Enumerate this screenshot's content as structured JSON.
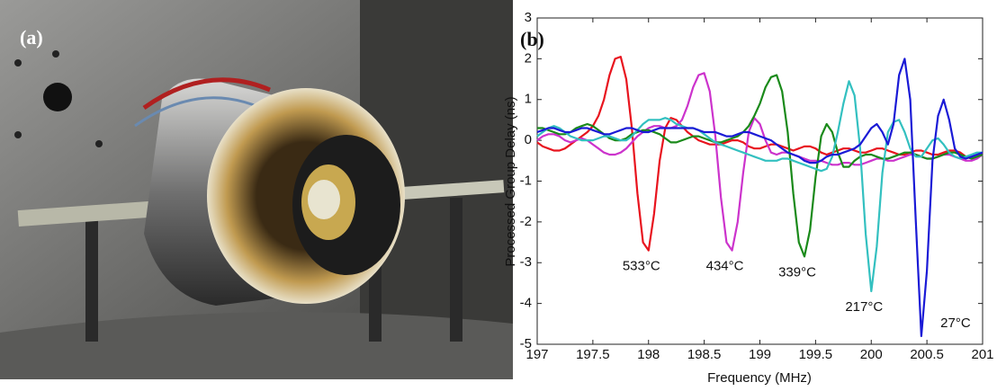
{
  "panel_a": {
    "label": "(a)"
  },
  "chart_data": {
    "type": "line",
    "panel_label": "(b)",
    "xlabel": "Frequency (MHz)",
    "ylabel": "Processed Group Delay (ns)",
    "x": [
      197,
      197.05,
      197.1,
      197.15,
      197.2,
      197.25,
      197.3,
      197.35,
      197.4,
      197.45,
      197.5,
      197.55,
      197.6,
      197.65,
      197.7,
      197.75,
      197.8,
      197.85,
      197.9,
      197.95,
      198,
      198.05,
      198.1,
      198.15,
      198.2,
      198.25,
      198.3,
      198.35,
      198.4,
      198.45,
      198.5,
      198.55,
      198.6,
      198.65,
      198.7,
      198.75,
      198.8,
      198.85,
      198.9,
      198.95,
      199,
      199.05,
      199.1,
      199.15,
      199.2,
      199.25,
      199.3,
      199.35,
      199.4,
      199.45,
      199.5,
      199.55,
      199.6,
      199.65,
      199.7,
      199.75,
      199.8,
      199.85,
      199.9,
      199.95,
      200,
      200.05,
      200.1,
      200.15,
      200.2,
      200.25,
      200.3,
      200.35,
      200.4,
      200.45,
      200.5,
      200.55,
      200.6,
      200.65,
      200.7,
      200.75,
      200.8,
      200.85,
      200.9,
      200.95,
      201
    ],
    "series": [
      {
        "name": "533°C",
        "color": "#e8141e",
        "values": [
          -0.05,
          -0.15,
          -0.2,
          -0.25,
          -0.25,
          -0.2,
          -0.1,
          0,
          0.1,
          0.2,
          0.35,
          0.6,
          1,
          1.6,
          2,
          2.05,
          1.5,
          0.3,
          -1.3,
          -2.5,
          -2.7,
          -1.8,
          -0.5,
          0.3,
          0.55,
          0.5,
          0.35,
          0.2,
          0.1,
          0,
          -0.05,
          -0.1,
          -0.1,
          -0.1,
          -0.05,
          0,
          0,
          -0.05,
          -0.15,
          -0.2,
          -0.2,
          -0.15,
          -0.1,
          -0.1,
          -0.15,
          -0.2,
          -0.25,
          -0.2,
          -0.15,
          -0.15,
          -0.2,
          -0.3,
          -0.35,
          -0.3,
          -0.25,
          -0.2,
          -0.2,
          -0.25,
          -0.3,
          -0.3,
          -0.25,
          -0.2,
          -0.2,
          -0.25,
          -0.3,
          -0.35,
          -0.35,
          -0.3,
          -0.25,
          -0.25,
          -0.3,
          -0.35,
          -0.35,
          -0.3,
          -0.25,
          -0.25,
          -0.3,
          -0.4,
          -0.45,
          -0.4,
          -0.3
        ]
      },
      {
        "name": "434°C",
        "color": "#cc33cc",
        "values": [
          0,
          0.1,
          0.15,
          0.15,
          0.1,
          0,
          -0.05,
          0,
          0.05,
          0,
          -0.1,
          -0.2,
          -0.3,
          -0.35,
          -0.35,
          -0.3,
          -0.2,
          -0.05,
          0.1,
          0.2,
          0.3,
          0.35,
          0.35,
          0.3,
          0.3,
          0.35,
          0.5,
          0.85,
          1.3,
          1.6,
          1.65,
          1.2,
          0.1,
          -1.4,
          -2.5,
          -2.7,
          -2,
          -0.8,
          0.2,
          0.55,
          0.4,
          0,
          -0.3,
          -0.35,
          -0.3,
          -0.3,
          -0.35,
          -0.4,
          -0.45,
          -0.5,
          -0.5,
          -0.5,
          -0.55,
          -0.6,
          -0.6,
          -0.55,
          -0.55,
          -0.6,
          -0.6,
          -0.55,
          -0.5,
          -0.45,
          -0.45,
          -0.5,
          -0.5,
          -0.45,
          -0.4,
          -0.35,
          -0.35,
          -0.4,
          -0.45,
          -0.45,
          -0.4,
          -0.35,
          -0.35,
          -0.4,
          -0.45,
          -0.5,
          -0.5,
          -0.45,
          -0.35
        ]
      },
      {
        "name": "339°C",
        "color": "#1a8a1a",
        "values": [
          0.3,
          0.3,
          0.25,
          0.2,
          0.15,
          0.15,
          0.2,
          0.3,
          0.35,
          0.4,
          0.35,
          0.25,
          0.15,
          0.05,
          0,
          0,
          0.05,
          0.15,
          0.2,
          0.25,
          0.25,
          0.2,
          0.15,
          0.05,
          -0.05,
          -0.05,
          0,
          0.05,
          0.1,
          0.1,
          0.05,
          0,
          -0.05,
          -0.05,
          0,
          0.05,
          0.1,
          0.2,
          0.35,
          0.6,
          0.9,
          1.3,
          1.55,
          1.6,
          1.2,
          0.2,
          -1.3,
          -2.5,
          -2.85,
          -2.2,
          -0.9,
          0.1,
          0.4,
          0.2,
          -0.3,
          -0.65,
          -0.65,
          -0.5,
          -0.4,
          -0.35,
          -0.35,
          -0.4,
          -0.45,
          -0.45,
          -0.4,
          -0.35,
          -0.3,
          -0.3,
          -0.35,
          -0.4,
          -0.45,
          -0.45,
          -0.4,
          -0.35,
          -0.3,
          -0.3,
          -0.35,
          -0.4,
          -0.45,
          -0.4,
          -0.35
        ]
      },
      {
        "name": "217°C",
        "color": "#33c0c0",
        "values": [
          0.1,
          0.2,
          0.3,
          0.35,
          0.3,
          0.2,
          0.1,
          0.05,
          0,
          0,
          0,
          0.05,
          0.1,
          0.1,
          0.05,
          0,
          0,
          0.1,
          0.25,
          0.4,
          0.5,
          0.5,
          0.5,
          0.55,
          0.5,
          0.4,
          0.35,
          0.3,
          0.3,
          0.25,
          0.15,
          0.05,
          -0.05,
          -0.1,
          -0.15,
          -0.2,
          -0.25,
          -0.3,
          -0.35,
          -0.4,
          -0.45,
          -0.5,
          -0.5,
          -0.5,
          -0.45,
          -0.45,
          -0.5,
          -0.55,
          -0.6,
          -0.65,
          -0.7,
          -0.75,
          -0.7,
          -0.4,
          0.2,
          0.9,
          1.45,
          1.1,
          -0.2,
          -2.3,
          -3.7,
          -2.6,
          -0.8,
          0.2,
          0.45,
          0.5,
          0.2,
          -0.2,
          -0.4,
          -0.4,
          -0.2,
          0,
          0.05,
          -0.1,
          -0.3,
          -0.4,
          -0.45,
          -0.4,
          -0.35,
          -0.3,
          -0.3
        ]
      },
      {
        "name": "27°C",
        "color": "#1a1ad6",
        "values": [
          0.2,
          0.25,
          0.3,
          0.3,
          0.25,
          0.2,
          0.2,
          0.25,
          0.3,
          0.3,
          0.25,
          0.2,
          0.15,
          0.15,
          0.2,
          0.25,
          0.3,
          0.3,
          0.25,
          0.2,
          0.2,
          0.25,
          0.3,
          0.3,
          0.3,
          0.3,
          0.3,
          0.3,
          0.3,
          0.25,
          0.2,
          0.2,
          0.2,
          0.15,
          0.1,
          0.1,
          0.15,
          0.2,
          0.2,
          0.15,
          0.1,
          0.05,
          0,
          -0.1,
          -0.2,
          -0.3,
          -0.35,
          -0.4,
          -0.5,
          -0.55,
          -0.55,
          -0.5,
          -0.4,
          -0.35,
          -0.35,
          -0.3,
          -0.25,
          -0.2,
          -0.1,
          0.1,
          0.3,
          0.4,
          0.2,
          -0.1,
          0.4,
          1.6,
          2,
          1,
          -2,
          -4.8,
          -3.2,
          -0.5,
          0.6,
          1,
          0.5,
          -0.2,
          -0.4,
          -0.45,
          -0.4,
          -0.35,
          -0.3
        ]
      }
    ],
    "xlim": [
      197,
      201
    ],
    "ylim": [
      -5,
      3
    ],
    "xticks": [
      197,
      197.5,
      198,
      198.5,
      199,
      199.5,
      200,
      200.5,
      201
    ],
    "yticks": [
      -5,
      -4,
      -3,
      -2,
      -1,
      0,
      1,
      2,
      3
    ]
  }
}
